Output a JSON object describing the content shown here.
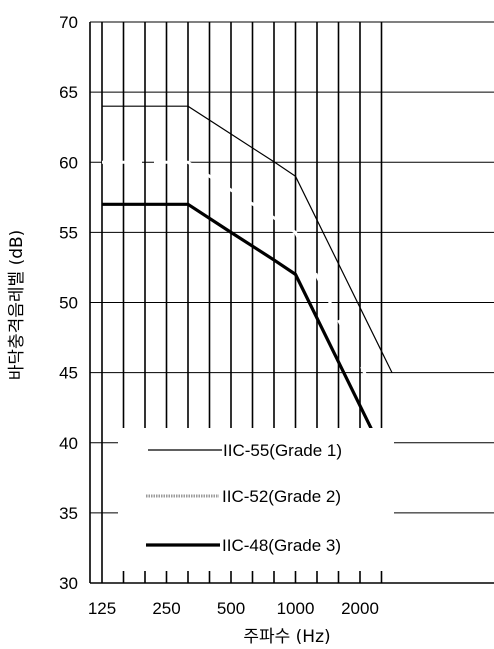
{
  "chart_data": {
    "type": "line",
    "title": "",
    "xlabel": "주파수 (Hz)",
    "ylabel": "바닥충격음레벨 (dB)",
    "x_scale": "log2",
    "x_ticks": [
      125,
      250,
      500,
      1000,
      2000
    ],
    "x_tick_labels": [
      "125",
      "250",
      "500",
      "1000",
      "2000"
    ],
    "xlim": [
      125,
      2820
    ],
    "y_ticks": [
      30,
      35,
      40,
      45,
      50,
      55,
      60,
      65,
      70
    ],
    "y_tick_labels": [
      "30",
      "35",
      "40",
      "45",
      "50",
      "55",
      "60",
      "65",
      "70"
    ],
    "ylim": [
      30,
      70
    ],
    "grid": true,
    "legend_position": "bottom-left",
    "series": [
      {
        "name": "IIC-55(Grade 1)",
        "style": "thin",
        "color": "#000000",
        "points": [
          [
            125,
            64
          ],
          [
            315,
            64
          ],
          [
            800,
            60
          ],
          [
            1000,
            59
          ],
          [
            2820,
            45
          ]
        ]
      },
      {
        "name": "IIC-52(Grade 2)",
        "style": "dotted",
        "color": "#bbbbbb",
        "points": [
          [
            125,
            60
          ],
          [
            315,
            60
          ],
          [
            800,
            56
          ],
          [
            1000,
            55
          ],
          [
            2820,
            41
          ]
        ]
      },
      {
        "name": "IIC-48(Grade 3)",
        "style": "thick",
        "color": "#000000",
        "points": [
          [
            125,
            57
          ],
          [
            315,
            57
          ],
          [
            500,
            55
          ],
          [
            800,
            53
          ],
          [
            1000,
            52
          ],
          [
            2820,
            38
          ]
        ]
      }
    ]
  }
}
